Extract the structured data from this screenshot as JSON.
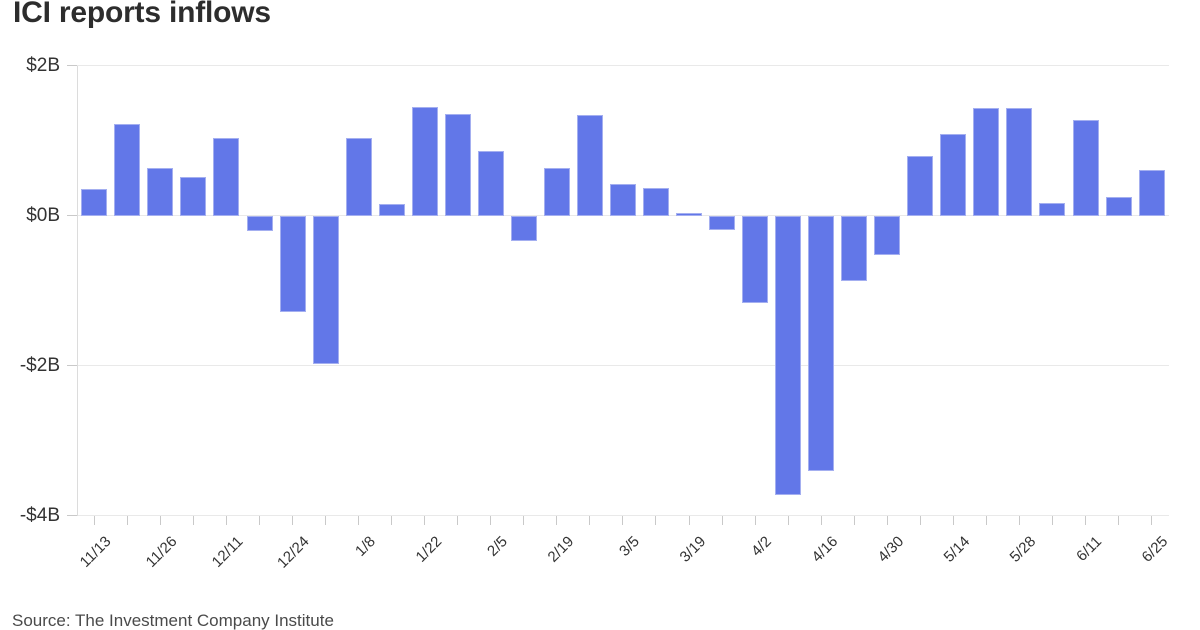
{
  "title": "ICI reports inflows",
  "source_note": "Source: The Investment Company Institute",
  "colors": {
    "bar_fill": "#6277e8",
    "bar_edge": "#a4aff0",
    "grid_line": "#e9e9e9",
    "axis_line": "#dcdcdc",
    "tick_mark": "#c9c9c9",
    "title_text": "#2d2d2d",
    "axis_text": "#333333",
    "source_text": "#4a4a4a",
    "background": "#ffffff"
  },
  "chart_data": {
    "type": "bar",
    "title": "ICI reports inflows",
    "unit": "billions of dollars",
    "ylabel": "",
    "xlabel": "",
    "ylim": [
      -4,
      2
    ],
    "grid": true,
    "legend": false,
    "y_ticks": [
      {
        "label": "$2B",
        "value": 2
      },
      {
        "label": "$0B",
        "value": 0
      },
      {
        "label": "-$2B",
        "value": -2
      },
      {
        "label": "-$4B",
        "value": -4
      }
    ],
    "x_tick_labels": [
      "11/13",
      "11/26",
      "12/11",
      "12/24",
      "1/8",
      "1/22",
      "2/5",
      "2/19",
      "3/5",
      "3/19",
      "4/2",
      "4/16",
      "4/30",
      "5/14",
      "5/28",
      "6/11",
      "6/25"
    ],
    "x_label_every_n_bars": 2,
    "values": [
      0.36,
      1.22,
      0.63,
      0.52,
      1.03,
      -0.21,
      -1.29,
      -1.98,
      1.03,
      0.15,
      1.45,
      1.35,
      0.86,
      -0.34,
      0.63,
      1.34,
      0.42,
      0.37,
      0.03,
      -0.19,
      -1.17,
      -3.73,
      -3.41,
      -0.87,
      -0.53,
      0.79,
      1.09,
      1.44,
      1.43,
      0.17,
      1.27,
      0.25,
      0.61
    ]
  }
}
